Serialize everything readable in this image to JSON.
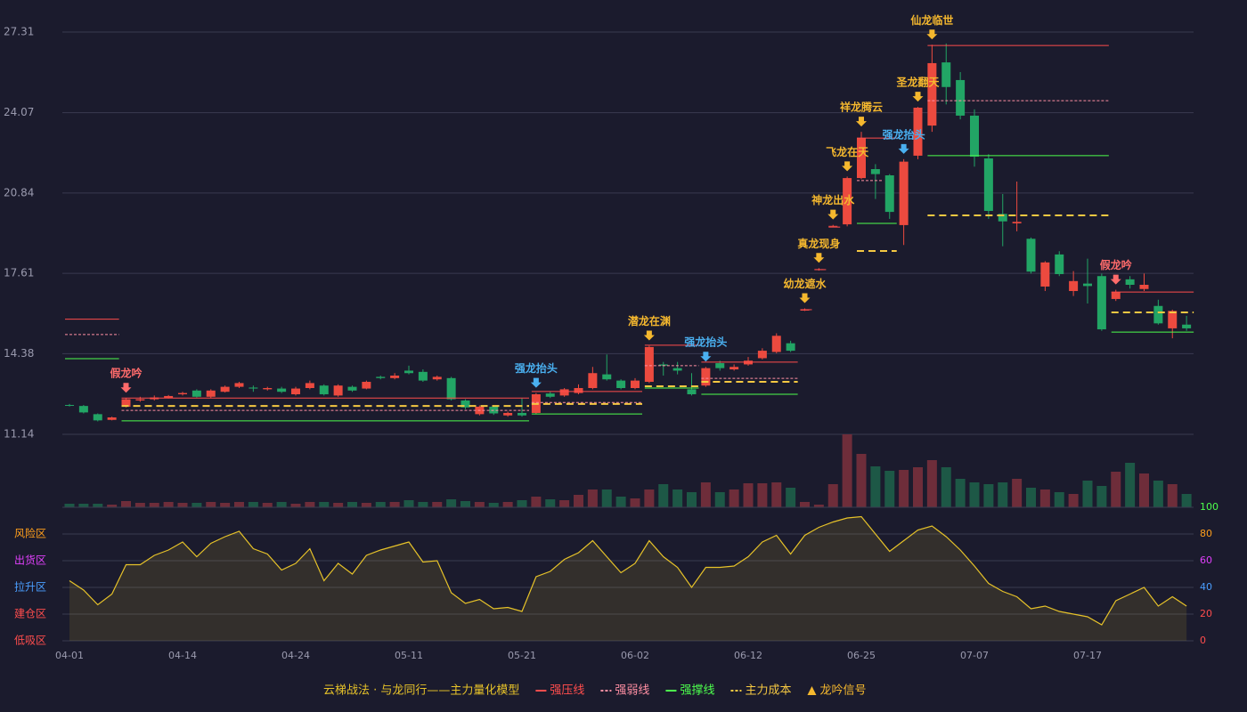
{
  "chart_data": [
    {
      "type": "candlestick",
      "title": "云梯战法 · 与龙同行——主力量化模型",
      "open": [
        12.32,
        12.28,
        11.95,
        11.72,
        12.25,
        12.5,
        12.55,
        12.6,
        12.75,
        12.9,
        12.65,
        12.85,
        13.05,
        13.02,
        12.95,
        12.98,
        12.75,
        13.0,
        13.1,
        12.7,
        13.05,
        12.98,
        13.45,
        13.4,
        13.7,
        13.65,
        13.35,
        13.4,
        12.5,
        11.95,
        12.25,
        11.9,
        12.0,
        12.0,
        12.78,
        12.7,
        12.8,
        13.0,
        13.55,
        13.3,
        13.0,
        13.25,
        13.95,
        13.8,
        12.95,
        13.1,
        14.0,
        13.75,
        13.95,
        14.2,
        14.45,
        14.8,
        16.12,
        17.75,
        19.5,
        19.58,
        21.44,
        21.8,
        21.55,
        19.55,
        22.34,
        23.55,
        26.09,
        25.38,
        23.95,
        22.23,
        20.0,
        19.62,
        19.0,
        17.08,
        18.37,
        16.9,
        17.2,
        17.5,
        16.58,
        17.37,
        16.98,
        16.3,
        15.4,
        15.55
      ],
      "close": [
        12.3,
        12.02,
        11.7,
        11.82,
        12.55,
        12.55,
        12.62,
        12.68,
        12.8,
        12.65,
        12.9,
        13.05,
        13.2,
        12.98,
        13.0,
        12.85,
        12.98,
        13.2,
        12.75,
        13.1,
        12.9,
        13.25,
        13.4,
        13.5,
        13.6,
        13.3,
        13.45,
        12.55,
        12.22,
        12.25,
        11.98,
        12.0,
        11.9,
        12.75,
        12.65,
        12.95,
        13.0,
        13.6,
        13.35,
        13.0,
        13.3,
        14.65,
        13.9,
        13.7,
        12.75,
        13.8,
        13.8,
        13.85,
        14.1,
        14.5,
        15.1,
        14.5,
        16.15,
        17.78,
        19.52,
        21.44,
        23.05,
        21.6,
        20.08,
        22.1,
        24.27,
        26.06,
        25.1,
        23.95,
        22.3,
        20.12,
        19.7,
        19.68,
        17.68,
        18.05,
        17.58,
        17.3,
        17.1,
        15.36,
        16.86,
        17.15,
        17.15,
        15.6,
        16.1,
        15.4
      ],
      "high": [
        12.36,
        12.32,
        11.98,
        11.85,
        12.6,
        12.65,
        12.7,
        12.72,
        12.85,
        12.95,
        12.95,
        13.1,
        13.25,
        13.1,
        13.05,
        13.05,
        13.05,
        13.3,
        13.15,
        13.15,
        13.1,
        13.3,
        13.5,
        13.6,
        13.9,
        13.75,
        13.5,
        13.45,
        12.55,
        12.3,
        12.3,
        12.05,
        12.6,
        12.8,
        12.85,
        13.0,
        13.15,
        13.85,
        14.35,
        13.35,
        13.4,
        14.7,
        14.05,
        14.05,
        13.6,
        13.85,
        14.1,
        13.95,
        14.25,
        14.6,
        15.2,
        14.9,
        16.2,
        17.82,
        19.56,
        21.5,
        23.3,
        22.0,
        21.6,
        22.2,
        24.3,
        26.8,
        26.85,
        25.7,
        24.2,
        22.4,
        20.8,
        21.3,
        19.05,
        18.1,
        18.5,
        17.7,
        18.2,
        17.6,
        16.95,
        17.5,
        17.6,
        16.55,
        16.15,
        15.9
      ],
      "low": [
        12.26,
        11.98,
        11.66,
        11.7,
        12.22,
        12.45,
        12.5,
        12.58,
        12.7,
        12.62,
        12.6,
        12.82,
        13.0,
        12.85,
        12.9,
        12.8,
        12.7,
        12.95,
        12.7,
        12.65,
        12.85,
        12.95,
        13.35,
        13.35,
        13.55,
        13.25,
        13.3,
        12.5,
        12.15,
        11.9,
        11.92,
        11.85,
        11.85,
        11.95,
        12.6,
        12.65,
        12.75,
        12.95,
        13.3,
        12.95,
        12.95,
        13.2,
        13.5,
        13.55,
        12.7,
        13.05,
        13.7,
        13.7,
        13.9,
        14.15,
        14.4,
        14.45,
        16.1,
        17.72,
        19.46,
        19.5,
        21.4,
        20.6,
        19.8,
        18.75,
        22.2,
        23.3,
        24.4,
        23.8,
        21.9,
        19.8,
        18.7,
        19.3,
        17.6,
        16.9,
        17.5,
        16.7,
        16.4,
        15.3,
        16.5,
        17.0,
        16.9,
        15.55,
        15.0,
        15.3
      ],
      "volume": [
        4,
        4,
        4,
        3,
        7,
        5,
        5,
        6,
        5,
        5,
        6,
        5,
        6,
        6,
        5,
        6,
        4,
        6,
        6,
        5,
        6,
        5,
        6,
        6,
        8,
        6,
        6,
        9,
        7,
        6,
        5,
        6,
        8,
        12,
        9,
        8,
        14,
        20,
        20,
        12,
        10,
        20,
        26,
        20,
        17,
        28,
        17,
        20,
        27,
        27,
        28,
        22,
        6,
        3,
        26,
        82,
        60,
        46,
        41,
        42,
        45,
        53,
        45,
        32,
        28,
        26,
        28,
        32,
        22,
        20,
        17,
        15,
        30,
        24,
        40,
        50,
        38,
        30,
        26,
        15
      ],
      "up_color": "#ec4a3f",
      "down_color": "#22a565",
      "volume_up_color": "#6e2d3a",
      "volume_down_color": "#1d5846",
      "ylim": [
        11.14,
        27.31
      ],
      "yticks": [
        11.14,
        14.38,
        17.61,
        20.84,
        24.07,
        27.31
      ],
      "grid": true,
      "levels": [
        {
          "name": "强压线",
          "color": "#ff4d4d",
          "dashed": false,
          "segments": [
            {
              "from": 0,
              "to": 3,
              "value": 15.77
            },
            {
              "from": 4,
              "to": 32,
              "value": 12.6
            },
            {
              "from": 33,
              "to": 40,
              "value": 12.86
            },
            {
              "from": 41,
              "to": 44,
              "value": 14.72
            },
            {
              "from": 45,
              "to": 51,
              "value": 14.04
            },
            {
              "from": 52,
              "to": 52,
              "value": 16.15
            },
            {
              "from": 53,
              "to": 53,
              "value": 17.76
            },
            {
              "from": 54,
              "to": 54,
              "value": 19.47
            },
            {
              "from": 56,
              "to": 58,
              "value": 23.05
            },
            {
              "from": 61,
              "to": 73,
              "value": 26.77
            },
            {
              "from": 74,
              "to": 79,
              "value": 16.86
            }
          ]
        },
        {
          "name": "强弱线",
          "color": "#ff8fa3",
          "dashed": true,
          "segments": [
            {
              "from": 0,
              "to": 3,
              "value": 15.15
            },
            {
              "from": 4,
              "to": 32,
              "value": 12.1
            },
            {
              "from": 33,
              "to": 40,
              "value": 12.42
            },
            {
              "from": 41,
              "to": 44,
              "value": 13.9
            },
            {
              "from": 45,
              "to": 51,
              "value": 13.39
            },
            {
              "from": 56,
              "to": 57,
              "value": 21.34
            },
            {
              "from": 61,
              "to": 73,
              "value": 24.55
            }
          ]
        },
        {
          "name": "强撑线",
          "color": "#4dff4d",
          "dashed": false,
          "segments": [
            {
              "from": 0,
              "to": 3,
              "value": 14.18
            },
            {
              "from": 4,
              "to": 32,
              "value": 11.68
            },
            {
              "from": 33,
              "to": 40,
              "value": 11.96
            },
            {
              "from": 41,
              "to": 44,
              "value": 13.0
            },
            {
              "from": 45,
              "to": 51,
              "value": 12.75
            },
            {
              "from": 56,
              "to": 58,
              "value": 19.62
            },
            {
              "from": 61,
              "to": 73,
              "value": 22.34
            },
            {
              "from": 74,
              "to": 79,
              "value": 15.25
            }
          ]
        },
        {
          "name": "主力成本",
          "color": "#f5c842",
          "dashed": true,
          "segments": [
            {
              "from": 4,
              "to": 32,
              "value": 12.28
            },
            {
              "from": 33,
              "to": 40,
              "value": 12.36
            },
            {
              "from": 41,
              "to": 44,
              "value": 13.07
            },
            {
              "from": 45,
              "to": 51,
              "value": 13.25
            },
            {
              "from": 56,
              "to": 58,
              "value": 18.51
            },
            {
              "from": 61,
              "to": 73,
              "value": 19.94
            },
            {
              "from": 74,
              "to": 79,
              "value": 16.04
            }
          ]
        }
      ],
      "signals": {
        "name": "龙吟信号",
        "color": "#f5b82e",
        "points": [
          {
            "index": 4,
            "label": "假龙吟",
            "color": "#ff6b6b"
          },
          {
            "index": 33,
            "label": "强龙抬头",
            "color": "#4ab0f0"
          },
          {
            "index": 41,
            "label": "潜龙在渊",
            "color": "#f5b82e"
          },
          {
            "index": 45,
            "label": "强龙抬头",
            "color": "#4ab0f0"
          },
          {
            "index": 52,
            "label": "幼龙遮水",
            "color": "#f5b82e"
          },
          {
            "index": 53,
            "label": "真龙现身",
            "color": "#f5b82e"
          },
          {
            "index": 54,
            "label": "神龙出水",
            "color": "#f5b82e"
          },
          {
            "index": 55,
            "label": "飞龙在天",
            "color": "#f5b82e"
          },
          {
            "index": 56,
            "label": "祥龙腾云",
            "color": "#f5b82e"
          },
          {
            "index": 59,
            "label": "强龙抬头",
            "color": "#4ab0f0"
          },
          {
            "index": 60,
            "label": "圣龙翻天",
            "color": "#f5b82e"
          },
          {
            "index": 61,
            "label": "仙龙临世",
            "color": "#f5b82e"
          },
          {
            "index": 74,
            "label": "假龙吟",
            "color": "#ff6b6b"
          }
        ]
      }
    },
    {
      "type": "line",
      "color": "#e6c229",
      "categories": [
        "04-01",
        null,
        null,
        null,
        null,
        null,
        null,
        null,
        "04-14",
        null,
        null,
        null,
        null,
        null,
        null,
        null,
        "04-24",
        null,
        null,
        null,
        null,
        null,
        null,
        null,
        "05-11",
        null,
        null,
        null,
        null,
        null,
        null,
        null,
        "05-21",
        null,
        null,
        null,
        null,
        null,
        null,
        null,
        "06-02",
        null,
        null,
        null,
        null,
        null,
        null,
        null,
        "06-12",
        null,
        null,
        null,
        null,
        null,
        null,
        null,
        "06-25",
        null,
        null,
        null,
        null,
        null,
        null,
        null,
        "07-07",
        null,
        null,
        null,
        null,
        null,
        null,
        null,
        "07-17",
        null,
        null,
        null,
        null,
        null,
        null,
        null
      ],
      "values": [
        45,
        38,
        27,
        35,
        57,
        57,
        64,
        68,
        74,
        63,
        73,
        78,
        82,
        69,
        65,
        53,
        58,
        69,
        45,
        58,
        50,
        64,
        68,
        71,
        74,
        59,
        60,
        36,
        28,
        31,
        24,
        25,
        22,
        48,
        52,
        61,
        66,
        75,
        63,
        51,
        58,
        75,
        63,
        55,
        40,
        55,
        55,
        56,
        63,
        74,
        79,
        65,
        79,
        85,
        89,
        92,
        93,
        80,
        67,
        75,
        83,
        86,
        78,
        68,
        56,
        43,
        37,
        33,
        24,
        26,
        22,
        20,
        18,
        12,
        30,
        35,
        40,
        26,
        33,
        26
      ],
      "ylim": [
        0,
        100
      ],
      "yticks": [
        0,
        20,
        40,
        60,
        80,
        100
      ],
      "ytick_colors": [
        "#ff4d4d",
        "#ff4d4d",
        "#4a9eff",
        "#e040fb",
        "#ff9f1c",
        "#4dff4d"
      ],
      "zones": [
        {
          "value": 80,
          "label": "风险区"
        },
        {
          "value": 60,
          "label": "出货区"
        },
        {
          "value": 40,
          "label": "拉升区"
        },
        {
          "value": 20,
          "label": "建仓区"
        },
        {
          "value": 0,
          "label": "低吸区"
        }
      ],
      "zone_colors": [
        "#ff9f1c",
        "#e040fb",
        "#4a9eff",
        "#ff4d4d",
        "#ff4d4d"
      ]
    }
  ]
}
